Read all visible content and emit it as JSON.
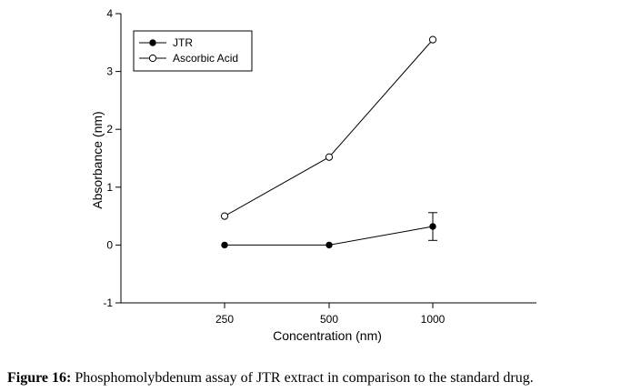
{
  "chart_data": {
    "type": "line",
    "xlabel": "Concentration (nm)",
    "ylabel": "Absorbance (nm)",
    "categories": [
      "250",
      "500",
      "1000"
    ],
    "ylim": [
      -1,
      4
    ],
    "yticks": [
      "-1",
      "0",
      "1",
      "2",
      "3",
      "4"
    ],
    "legend_position": "top-left",
    "grid": false,
    "series": [
      {
        "name": "JTR",
        "marker": "filled-circle",
        "values": [
          0.0,
          0.0,
          0.32
        ],
        "errors": [
          0,
          0,
          0.24
        ]
      },
      {
        "name": "Ascorbic Acid",
        "marker": "open-circle",
        "values": [
          0.5,
          1.52,
          3.55
        ],
        "errors": [
          0,
          0,
          0
        ]
      }
    ]
  },
  "caption": {
    "label": "Figure 16:",
    "text": " Phosphomolybdenum assay of JTR extract in comparison to the standard drug."
  }
}
